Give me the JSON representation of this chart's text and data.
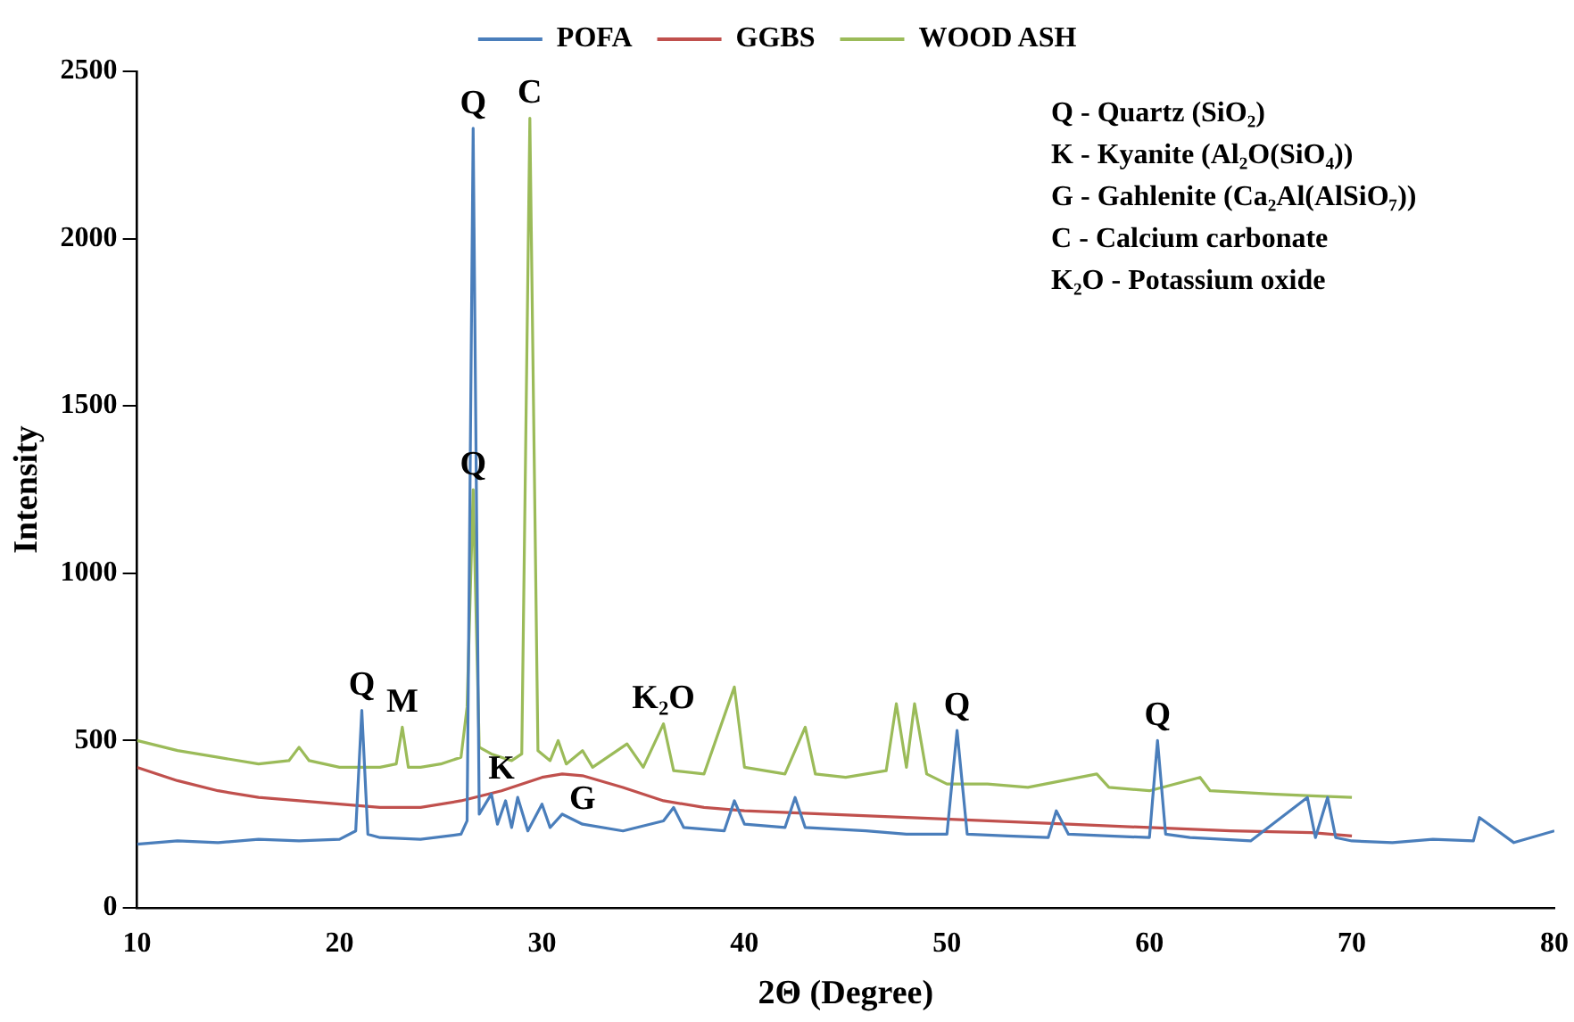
{
  "chart_data": {
    "type": "line",
    "xlabel": "2Θ (Degree)",
    "ylabel": "Intensity",
    "xlim": [
      10,
      80
    ],
    "ylim": [
      0,
      2500
    ],
    "xticks": [
      10,
      20,
      30,
      40,
      50,
      60,
      70,
      80
    ],
    "yticks": [
      0,
      500,
      1000,
      1500,
      2000,
      2500
    ],
    "grid": false,
    "legend": "top",
    "marker": "none",
    "line_style": "solid",
    "series": [
      {
        "name": "POFA",
        "color": "#4a7ebb",
        "x": [
          10,
          12,
          14,
          16,
          18,
          20,
          20.8,
          21.1,
          21.4,
          22,
          24,
          26,
          26.3,
          26.6,
          26.9,
          27.5,
          27.8,
          28.2,
          28.5,
          28.8,
          29.3,
          30,
          30.4,
          31,
          32,
          34,
          36,
          36.5,
          37,
          39,
          39.5,
          40,
          42,
          42.5,
          43,
          46,
          48,
          50,
          50.5,
          51,
          53,
          55,
          55.4,
          56,
          58,
          60,
          60.4,
          60.8,
          62,
          65,
          67.8,
          68.2,
          68.8,
          69.2,
          70,
          72,
          74,
          76,
          76.3,
          78,
          80
        ],
        "values": [
          190,
          200,
          195,
          205,
          200,
          205,
          230,
          590,
          220,
          210,
          205,
          220,
          260,
          2330,
          280,
          340,
          250,
          320,
          240,
          330,
          230,
          310,
          240,
          280,
          250,
          230,
          260,
          300,
          240,
          230,
          320,
          250,
          240,
          330,
          240,
          230,
          220,
          220,
          530,
          220,
          215,
          210,
          290,
          220,
          215,
          210,
          500,
          220,
          210,
          200,
          330,
          210,
          330,
          210,
          200,
          195,
          205,
          200,
          270,
          195,
          230
        ]
      },
      {
        "name": "GGBS",
        "color": "#c0504d",
        "x": [
          10,
          12,
          14,
          16,
          18,
          20,
          22,
          24,
          26,
          28,
          30,
          31,
          32,
          34,
          36,
          38,
          40,
          44,
          48,
          52,
          56,
          60,
          64,
          68,
          70
        ],
        "values": [
          420,
          380,
          350,
          330,
          320,
          310,
          300,
          300,
          320,
          350,
          390,
          400,
          395,
          360,
          320,
          300,
          290,
          280,
          270,
          260,
          250,
          240,
          230,
          225,
          215
        ]
      },
      {
        "name": "WOOD ASH",
        "color": "#9bbb59",
        "x": [
          10,
          12,
          14,
          16,
          17.5,
          18,
          18.5,
          20,
          21,
          22,
          22.8,
          23.1,
          23.4,
          24,
          25,
          26,
          26.3,
          26.6,
          26.9,
          27.5,
          28.5,
          29,
          29.4,
          29.8,
          30.4,
          30.8,
          31.2,
          32,
          32.5,
          34.2,
          35,
          36,
          36.5,
          38,
          39.5,
          40,
          42,
          43,
          43.5,
          45,
          47,
          47.5,
          48,
          48.4,
          49,
          50,
          52,
          54,
          57.4,
          58,
          60,
          62.5,
          63,
          66,
          68,
          70
        ],
        "values": [
          500,
          470,
          450,
          430,
          440,
          480,
          440,
          420,
          420,
          420,
          430,
          540,
          420,
          420,
          430,
          450,
          600,
          1250,
          480,
          460,
          440,
          460,
          2360,
          470,
          440,
          500,
          430,
          470,
          420,
          490,
          420,
          550,
          410,
          400,
          660,
          420,
          400,
          540,
          400,
          390,
          410,
          610,
          420,
          610,
          400,
          370,
          370,
          360,
          400,
          360,
          350,
          390,
          350,
          340,
          335,
          330
        ]
      }
    ],
    "annotations": [
      {
        "text": "Q",
        "x": 21.1,
        "y": 590
      },
      {
        "text": "M",
        "x": 23.1,
        "y": 540
      },
      {
        "text": "Q",
        "x": 26.6,
        "y": 1250
      },
      {
        "text": "Q",
        "x": 26.6,
        "y": 2330
      },
      {
        "text": "C",
        "x": 29.4,
        "y": 2360
      },
      {
        "text": "K",
        "x": 28,
        "y": 340
      },
      {
        "text": "G",
        "x": 32,
        "y": 250
      },
      {
        "text": "K₂O",
        "x": 36,
        "y": 550
      },
      {
        "text": "Q",
        "x": 50.5,
        "y": 530
      },
      {
        "text": "Q",
        "x": 60.4,
        "y": 500
      },
      "Q - Quartz (SiO₂)",
      "K - Kyanite (Al₂O(SiO₄))",
      "G - Gahlenite (Ca₂Al(AlSiO₇))",
      "C - Calcium carbonate",
      "K₂O - Potassium oxide"
    ]
  }
}
